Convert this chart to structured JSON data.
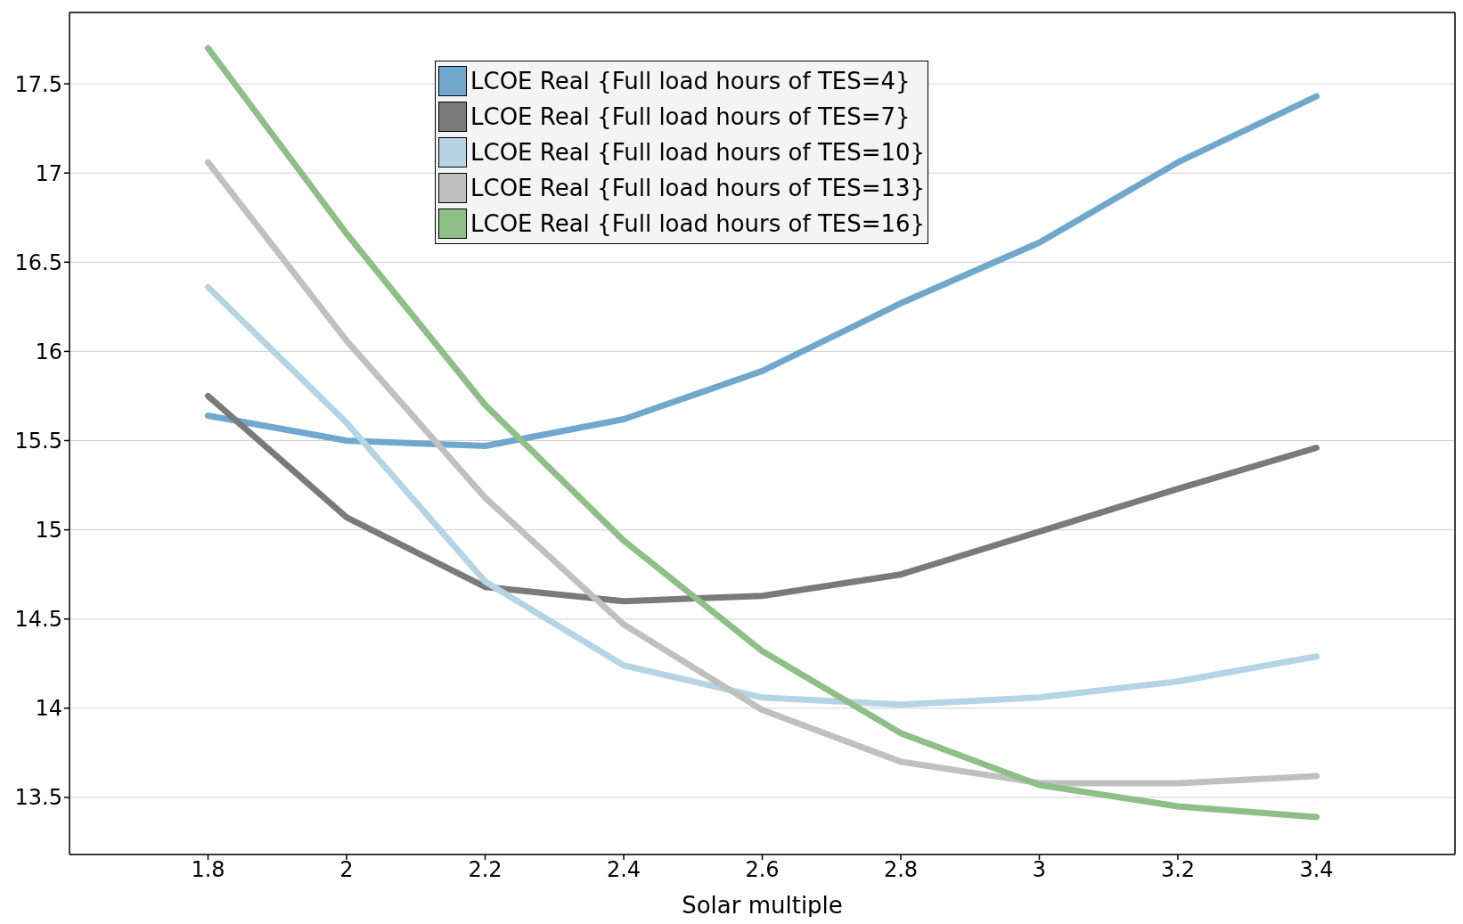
{
  "chart_data": {
    "type": "line",
    "xlabel": "Solar multiple",
    "x": [
      1.8,
      2,
      2.2,
      2.4,
      2.6,
      2.8,
      3,
      3.2,
      3.4
    ],
    "series": [
      {
        "name": "LCOE Real {Full load hours of TES=4}",
        "color": "#6fa8cc",
        "values": [
          15.64,
          15.5,
          15.47,
          15.62,
          15.89,
          16.27,
          16.61,
          17.06,
          17.43
        ]
      },
      {
        "name": "LCOE Real {Full load hours of TES=7}",
        "color": "#7a7a7a",
        "values": [
          15.75,
          15.07,
          14.68,
          14.6,
          14.63,
          14.75,
          14.99,
          15.23,
          15.46
        ]
      },
      {
        "name": "LCOE Real {Full load hours of TES=10}",
        "color": "#b5d4e6",
        "values": [
          16.36,
          15.6,
          14.71,
          14.24,
          14.06,
          14.02,
          14.06,
          14.15,
          14.29
        ]
      },
      {
        "name": "LCOE Real {Full load hours of TES=13}",
        "color": "#c0c0c0",
        "values": [
          17.06,
          16.06,
          15.18,
          14.47,
          13.99,
          13.7,
          13.58,
          13.58,
          13.62
        ]
      },
      {
        "name": "LCOE Real {Full load hours of TES=16}",
        "color": "#8dbf86",
        "values": [
          17.7,
          16.66,
          15.7,
          14.94,
          14.32,
          13.86,
          13.57,
          13.45,
          13.39
        ]
      }
    ],
    "xlim": [
      1.6,
      3.6
    ],
    "xticks": [
      1.8,
      2,
      2.2,
      2.4,
      2.6,
      2.8,
      3,
      3.2,
      3.4
    ],
    "ylim": [
      13.18,
      17.9
    ],
    "yticks": [
      13.5,
      14,
      14.5,
      15,
      15.5,
      16,
      16.5,
      17,
      17.5
    ],
    "grid": "y",
    "legend": "top",
    "marker": "none",
    "line_style": "solid"
  }
}
